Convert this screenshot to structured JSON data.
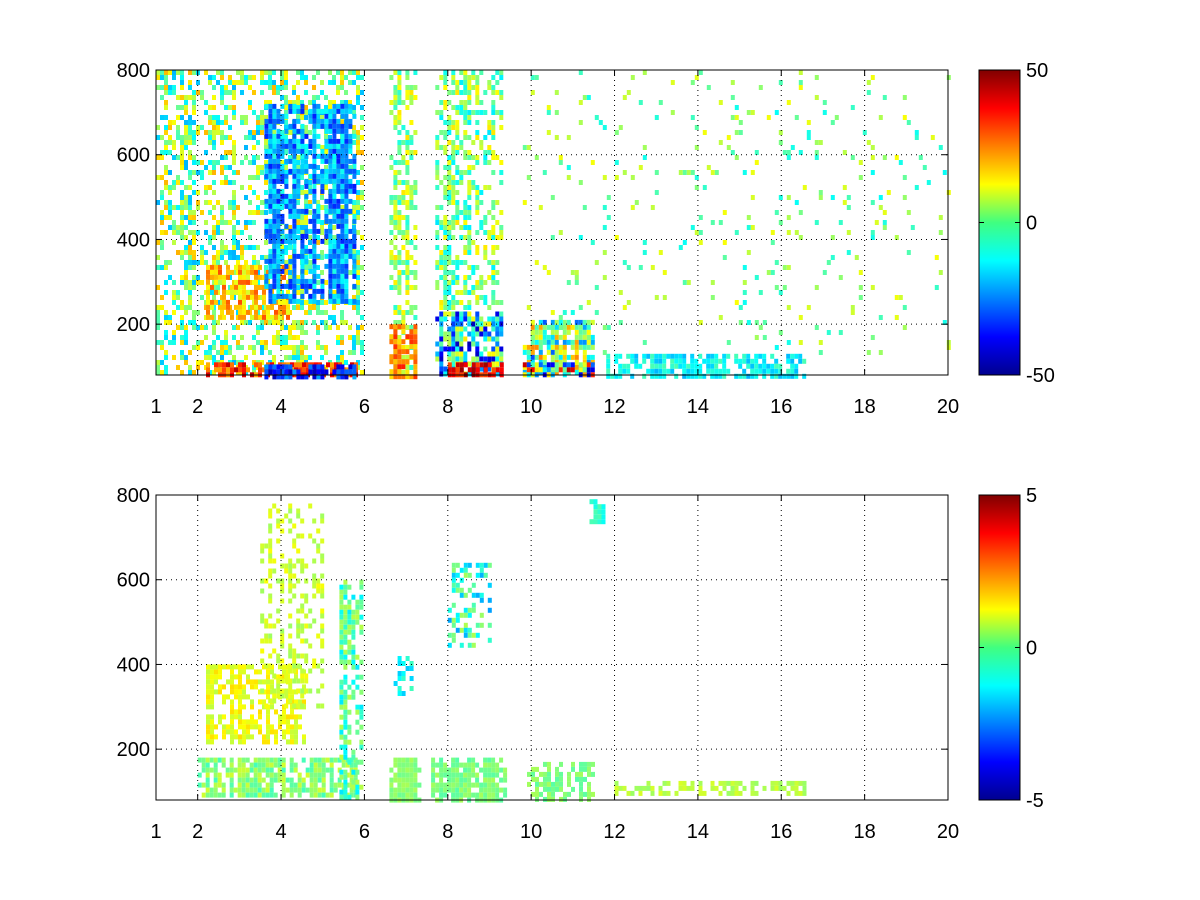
{
  "chart_data": [
    {
      "type": "heatmap",
      "title": "",
      "xlabel": "",
      "ylabel": "",
      "xlim": [
        1,
        20
      ],
      "ylim": [
        80,
        800
      ],
      "x_ticks": [
        1,
        2,
        4,
        6,
        8,
        10,
        12,
        14,
        16,
        18,
        20
      ],
      "y_ticks": [
        200,
        400,
        600,
        800
      ],
      "grid": true,
      "colormap": "jet",
      "colorbar": {
        "range": [
          -50,
          50
        ],
        "ticks": [
          -50,
          0,
          50
        ],
        "placement": "right"
      },
      "features": [
        {
          "x": [
            1.0,
            6.0
          ],
          "y": [
            80,
            800
          ],
          "density": 0.45,
          "value_range": [
            -20,
            20
          ]
        },
        {
          "x": [
            2.2,
            5.8
          ],
          "y": [
            80,
            110
          ],
          "density": 0.95,
          "value_range": [
            20,
            45
          ]
        },
        {
          "x": [
            3.6,
            5.8
          ],
          "y": [
            80,
            105
          ],
          "density": 0.9,
          "value_range": [
            -45,
            -20
          ]
        },
        {
          "x": [
            2.2,
            4.2
          ],
          "y": [
            220,
            340
          ],
          "density": 0.75,
          "value_range": [
            8,
            30
          ]
        },
        {
          "x": [
            3.6,
            5.8
          ],
          "y": [
            250,
            720
          ],
          "density": 0.7,
          "value_range": [
            -35,
            -10
          ]
        },
        {
          "x": [
            6.6,
            7.2
          ],
          "y": [
            80,
            800
          ],
          "density": 0.45,
          "value_range": [
            -10,
            15
          ]
        },
        {
          "x": [
            6.6,
            7.2
          ],
          "y": [
            80,
            200
          ],
          "density": 0.85,
          "value_range": [
            15,
            35
          ]
        },
        {
          "x": [
            7.7,
            9.3
          ],
          "y": [
            80,
            230
          ],
          "density": 0.9,
          "value_range": [
            -45,
            15
          ]
        },
        {
          "x": [
            8.0,
            9.3
          ],
          "y": [
            80,
            110
          ],
          "density": 0.9,
          "value_range": [
            30,
            48
          ]
        },
        {
          "x": [
            7.7,
            9.3
          ],
          "y": [
            240,
            800
          ],
          "density": 0.45,
          "value_range": [
            -15,
            15
          ]
        },
        {
          "x": [
            9.8,
            11.5
          ],
          "y": [
            80,
            210
          ],
          "density": 0.8,
          "value_range": [
            -30,
            25
          ]
        },
        {
          "x": [
            9.8,
            11.5
          ],
          "y": [
            80,
            110
          ],
          "density": 0.85,
          "value_range": [
            -45,
            45
          ]
        },
        {
          "x": [
            11.8,
            16.6
          ],
          "y": [
            80,
            130
          ],
          "density": 0.6,
          "value_range": [
            -20,
            -5
          ]
        },
        {
          "x": [
            9.8,
            20.0
          ],
          "y": [
            130,
            800
          ],
          "density": 0.06,
          "value_range": [
            -12,
            12
          ]
        }
      ]
    },
    {
      "type": "heatmap",
      "title": "",
      "xlabel": "",
      "ylabel": "",
      "xlim": [
        1,
        20
      ],
      "ylim": [
        80,
        800
      ],
      "x_ticks": [
        1,
        2,
        4,
        6,
        8,
        10,
        12,
        14,
        16,
        18,
        20
      ],
      "y_ticks": [
        200,
        400,
        600,
        800
      ],
      "grid": true,
      "colormap": "jet",
      "colorbar": {
        "range": [
          -5,
          5
        ],
        "ticks": [
          -5,
          0,
          5
        ],
        "placement": "right"
      },
      "features": [
        {
          "x": [
            2.0,
            5.8
          ],
          "y": [
            90,
            180
          ],
          "density": 0.75,
          "value_range": [
            -0.6,
            0.8
          ]
        },
        {
          "x": [
            2.2,
            4.6
          ],
          "y": [
            220,
            400
          ],
          "density": 0.7,
          "value_range": [
            0.6,
            1.6
          ]
        },
        {
          "x": [
            3.5,
            5.0
          ],
          "y": [
            300,
            780
          ],
          "density": 0.35,
          "value_range": [
            0.3,
            1.2
          ]
        },
        {
          "x": [
            5.4,
            5.9
          ],
          "y": [
            80,
            600
          ],
          "density": 0.55,
          "value_range": [
            -1.5,
            0.6
          ]
        },
        {
          "x": [
            6.6,
            7.3
          ],
          "y": [
            80,
            180
          ],
          "density": 0.75,
          "value_range": [
            -0.2,
            0.4
          ]
        },
        {
          "x": [
            6.7,
            7.1
          ],
          "y": [
            330,
            420
          ],
          "density": 0.55,
          "value_range": [
            -1.8,
            -0.6
          ]
        },
        {
          "x": [
            7.6,
            9.4
          ],
          "y": [
            80,
            180
          ],
          "density": 0.9,
          "value_range": [
            -0.4,
            0.4
          ]
        },
        {
          "x": [
            8.0,
            9.0
          ],
          "y": [
            440,
            640
          ],
          "density": 0.45,
          "value_range": [
            -2.2,
            0.5
          ]
        },
        {
          "x": [
            9.9,
            11.5
          ],
          "y": [
            80,
            170
          ],
          "density": 0.65,
          "value_range": [
            -0.4,
            0.4
          ]
        },
        {
          "x": [
            11.4,
            11.7
          ],
          "y": [
            730,
            790
          ],
          "density": 0.6,
          "value_range": [
            -1.2,
            -0.4
          ]
        },
        {
          "x": [
            12.0,
            16.6
          ],
          "y": [
            90,
            125
          ],
          "density": 0.5,
          "value_range": [
            0.2,
            0.9
          ]
        }
      ]
    }
  ]
}
